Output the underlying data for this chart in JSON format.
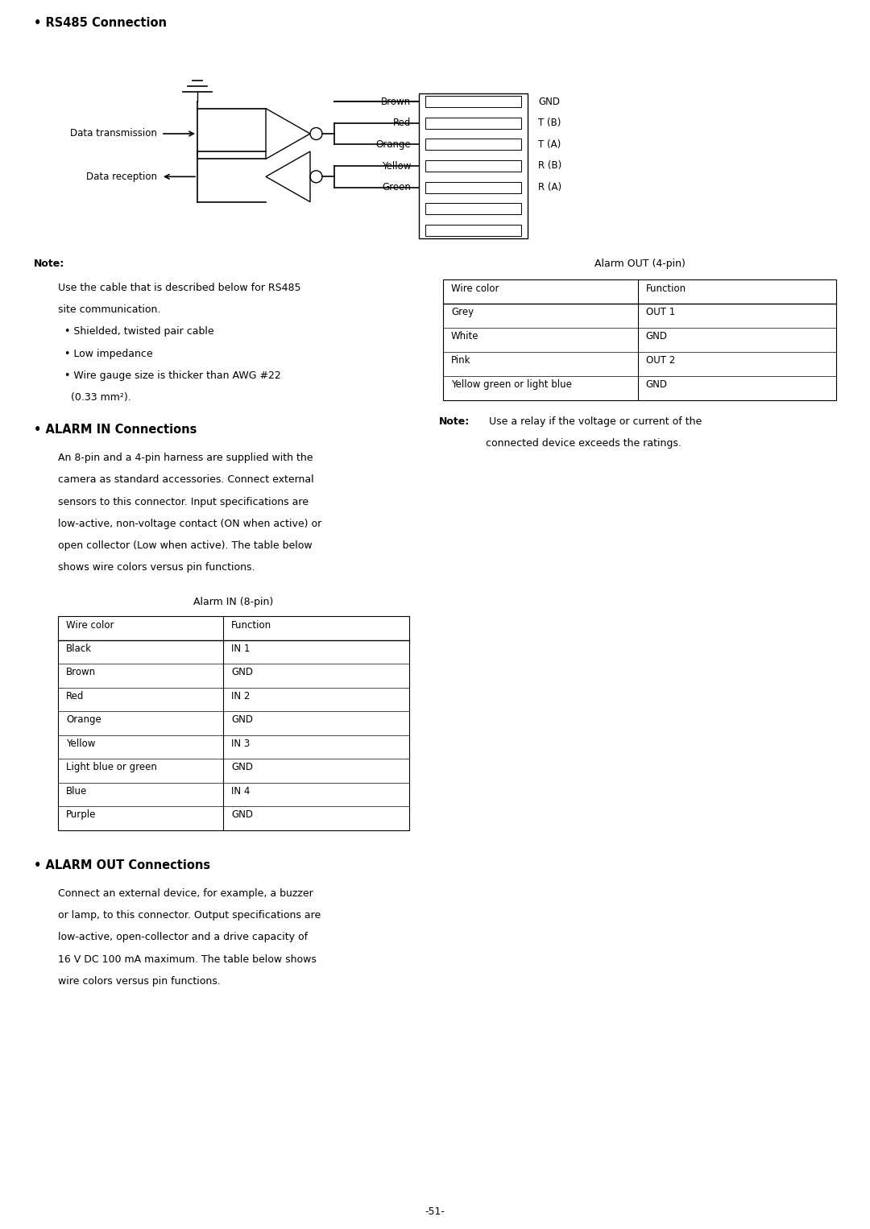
{
  "bg_color": "#ffffff",
  "page_width": 10.8,
  "page_height": 15.26,
  "section1_title": "• RS485 Connection",
  "section2_title": "• ALARM IN Connections",
  "section3_title": "• ALARM OUT Connections",
  "rs485_wire_labels": [
    "Brown",
    "Red",
    "Orange",
    "Yellow",
    "Green"
  ],
  "rs485_connector_labels": [
    "GND",
    "T (B)",
    "T (A)",
    "R (B)",
    "R (A)"
  ],
  "data_transmission_label": "Data transmission",
  "data_reception_label": "Data reception",
  "note_label": "Note:",
  "alarm_in_title": "Alarm IN (8-pin)",
  "alarm_in_headers": [
    "Wire color",
    "Function"
  ],
  "alarm_in_rows": [
    [
      "Black",
      "IN 1"
    ],
    [
      "Brown",
      "GND"
    ],
    [
      "Red",
      "IN 2"
    ],
    [
      "Orange",
      "GND"
    ],
    [
      "Yellow",
      "IN 3"
    ],
    [
      "Light blue or green",
      "GND"
    ],
    [
      "Blue",
      "IN 4"
    ],
    [
      "Purple",
      "GND"
    ]
  ],
  "alarm_out_title": "Alarm OUT (4-pin)",
  "alarm_out_headers": [
    "Wire color",
    "Function"
  ],
  "alarm_out_rows": [
    [
      "Grey",
      "OUT 1"
    ],
    [
      "White",
      "GND"
    ],
    [
      "Pink",
      "OUT 2"
    ],
    [
      "Yellow green or light blue",
      "GND"
    ]
  ],
  "alarm_in_section_text": "An 8-pin and a 4-pin harness are supplied with the\ncamera as standard accessories. Connect external\nsensors to this connector. Input specifications are\nlow-active, non-voltage contact (ON when active) or\nopen collector (Low when active). The table below\nshows wire colors versus pin functions.",
  "alarm_out_section_text": "Connect an external device, for example, a buzzer\nor lamp, to this connector. Output specifications are\nlow-active, open-collector and a drive capacity of\n16 V DC 100 mA maximum. The table below shows\nwire colors versus pin functions.",
  "page_number": "-51-"
}
